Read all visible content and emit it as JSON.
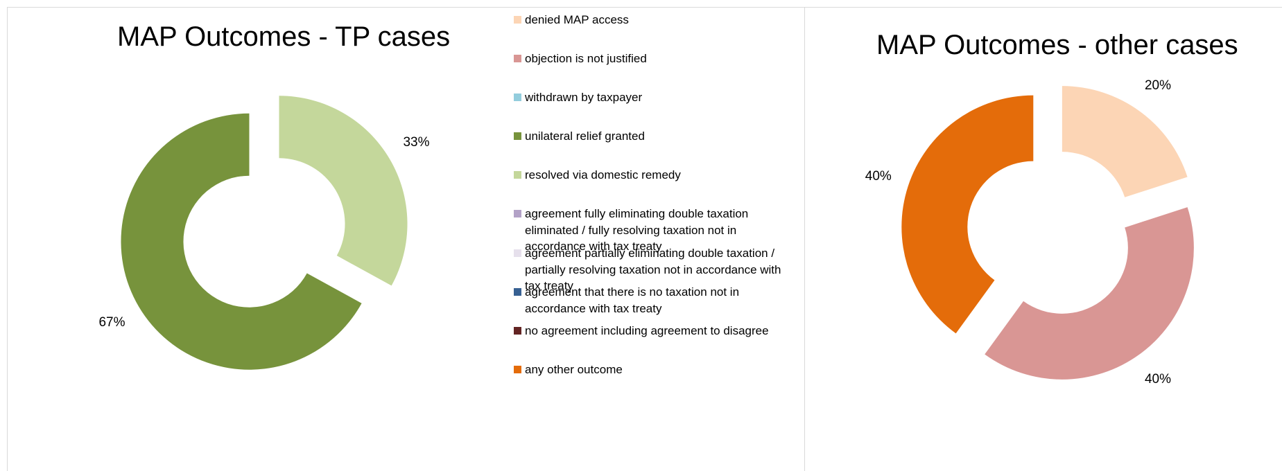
{
  "chart_data": [
    {
      "type": "pie",
      "variant": "exploded-doughnut",
      "title": "MAP Outcomes - TP cases",
      "categories": [
        "resolved via domestic remedy",
        "unilateral relief granted"
      ],
      "values": [
        33,
        67
      ],
      "value_labels": [
        "33%",
        "67%"
      ],
      "colors": [
        "#c4d79b",
        "#77933c"
      ],
      "legend": {
        "placement": "right",
        "entries": [
          {
            "label": "denied MAP access",
            "color": "#fcd5b5"
          },
          {
            "label": "objection is not justified",
            "color": "#d99694"
          },
          {
            "label": "withdrawn by taxpayer",
            "color": "#93cddd"
          },
          {
            "label": "unilateral relief granted",
            "color": "#77933c"
          },
          {
            "label": "resolved via domestic remedy",
            "color": "#c4d79b"
          },
          {
            "label": "agreement fully eliminating double taxation eliminated / fully resolving taxation not in accordance with tax treaty",
            "color": "#b3a2c7"
          },
          {
            "label": "agreement partially eliminating double taxation / partially resolving taxation not in accordance with tax treaty",
            "color": "#e6e0ec"
          },
          {
            "label": "agreement that there is no taxation not in accordance with tax treaty",
            "color": "#376092"
          },
          {
            "label": "no agreement including agreement to disagree",
            "color": "#632423"
          },
          {
            "label": "any other outcome",
            "color": "#e46c0a"
          }
        ]
      }
    },
    {
      "type": "pie",
      "variant": "exploded-doughnut",
      "title": "MAP Outcomes - other cases",
      "categories": [
        "denied MAP access",
        "objection is not justified",
        "any other outcome"
      ],
      "values": [
        20,
        40,
        40
      ],
      "value_labels": [
        "20%",
        "40%",
        "40%"
      ],
      "colors": [
        "#fcd5b5",
        "#d99694",
        "#e46c0a"
      ]
    }
  ]
}
